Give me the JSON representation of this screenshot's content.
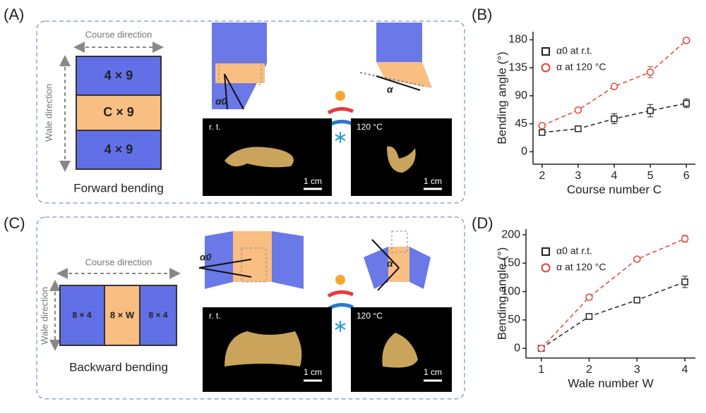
{
  "panel_a": {
    "label": "(A)",
    "course": "Course direction",
    "wale": "Wale direction",
    "blocks": [
      "4 × 9",
      "C × 9",
      "4 × 9"
    ],
    "caption": "Forward bending",
    "angle_rt": "α0",
    "angle_hot": "α",
    "photo_rt": "r. t.",
    "photo_hot": "120 °C",
    "scale_rt": "1 cm",
    "scale_hot": "1 cm"
  },
  "panel_c": {
    "label": "(C)",
    "course": "Course direction",
    "wale": "Wale direction",
    "blocks": [
      "8 × 4",
      "8 × W",
      "8 × 4"
    ],
    "caption": "Backward bending",
    "angle_rt": "α0",
    "angle_hot": "α",
    "photo_rt": "r. t.",
    "photo_hot": "120 °C",
    "scale_rt": "1 cm",
    "scale_hot": "1 cm"
  },
  "chart_data": [
    {
      "type": "line",
      "panel": "(B)",
      "x_label": "Course number C",
      "y_label": "Bending angle (°)",
      "x": [
        2,
        3,
        4,
        5,
        6
      ],
      "xlim": [
        1.75,
        6.25
      ],
      "xticks": [
        2,
        3,
        4,
        5,
        6
      ],
      "ylim": [
        -20,
        193
      ],
      "yticks": [
        0,
        45,
        90,
        135,
        180
      ],
      "series": [
        {
          "name": "α0 at r.t.",
          "color": "#222222",
          "marker": "square",
          "values": [
            31,
            37,
            53,
            66,
            78
          ],
          "errors": [
            3,
            2,
            8,
            10,
            7
          ]
        },
        {
          "name": "α at 120 °C",
          "color": "#e0443a",
          "marker": "circle",
          "values": [
            42,
            67,
            105,
            128,
            179
          ],
          "errors": [
            3,
            2,
            2,
            9,
            2
          ]
        }
      ]
    },
    {
      "type": "line",
      "panel": "(D)",
      "x_label": "Wale number W",
      "y_label": "Bending angle (°)",
      "x": [
        1,
        2,
        3,
        4
      ],
      "xlim": [
        0.68,
        4.22
      ],
      "xticks": [
        1,
        2,
        3,
        4
      ],
      "ylim": [
        -17,
        210
      ],
      "yticks": [
        0,
        50,
        100,
        150,
        200
      ],
      "series": [
        {
          "name": "α0 at r.t.",
          "color": "#222222",
          "marker": "square",
          "values": [
            0,
            56,
            85,
            117
          ],
          "errors": [
            0,
            3,
            3,
            10
          ]
        },
        {
          "name": "α at 120 °C",
          "color": "#e0443a",
          "marker": "circle",
          "values": [
            0,
            90,
            157,
            193
          ],
          "errors": [
            0,
            4,
            2,
            6
          ]
        }
      ]
    }
  ]
}
